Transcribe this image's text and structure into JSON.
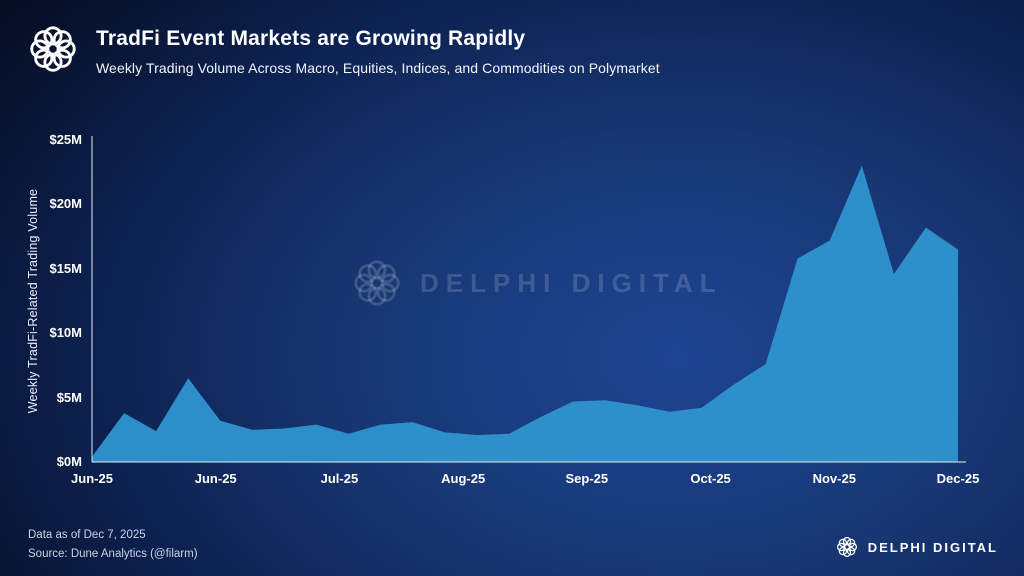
{
  "header": {
    "title": "TradFi Event Markets are Growing Rapidly",
    "subtitle": "Weekly Trading Volume Across Macro, Equities, Indices, and Commodities on Polymarket"
  },
  "watermark": {
    "text": "DELPHI DIGITAL"
  },
  "footer": {
    "data_as_of": "Data as of Dec 7, 2025",
    "source": "Source: Dune Analytics (@filarm)",
    "brand": "DELPHI DIGITAL"
  },
  "chart_data": {
    "type": "area",
    "title": "Weekly Trading Volume Across Macro, Equities, Indices, and Commodities on Polymarket",
    "xlabel": "",
    "ylabel": "Weekly TradFi-Related Trading Volume",
    "y_unit": "$M",
    "ylim": [
      0,
      25
    ],
    "grid": false,
    "legend": "none",
    "area_color": "#2F93CE",
    "y_ticks": [
      {
        "label": "$0M",
        "value": 0
      },
      {
        "label": "$5M",
        "value": 5
      },
      {
        "label": "$10M",
        "value": 10
      },
      {
        "label": "$15M",
        "value": 15
      },
      {
        "label": "$20M",
        "value": 20
      },
      {
        "label": "$25M",
        "value": 25
      }
    ],
    "x_ticks": [
      "Jun-25",
      "Jun-25",
      "Jul-25",
      "Aug-25",
      "Sep-25",
      "Oct-25",
      "Nov-25",
      "Dec-25"
    ],
    "x": [
      "Jun 1",
      "Jun 8",
      "Jun 15",
      "Jun 22",
      "Jun 29",
      "Jul 6",
      "Jul 13",
      "Jul 20",
      "Jul 27",
      "Aug 3",
      "Aug 10",
      "Aug 17",
      "Aug 24",
      "Aug 31",
      "Sep 7",
      "Sep 14",
      "Sep 21",
      "Sep 28",
      "Oct 5",
      "Oct 12",
      "Oct 19",
      "Oct 26",
      "Nov 2",
      "Nov 9",
      "Nov 16",
      "Nov 23",
      "Nov 30",
      "Dec 7"
    ],
    "y": [
      0.4,
      3.8,
      2.4,
      6.5,
      3.2,
      2.5,
      2.6,
      2.9,
      2.2,
      2.9,
      3.1,
      2.3,
      2.1,
      2.2,
      3.5,
      4.7,
      4.8,
      4.4,
      3.9,
      4.2,
      6.0,
      7.6,
      15.8,
      17.2,
      23.0,
      14.6,
      18.2,
      16.5
    ]
  }
}
